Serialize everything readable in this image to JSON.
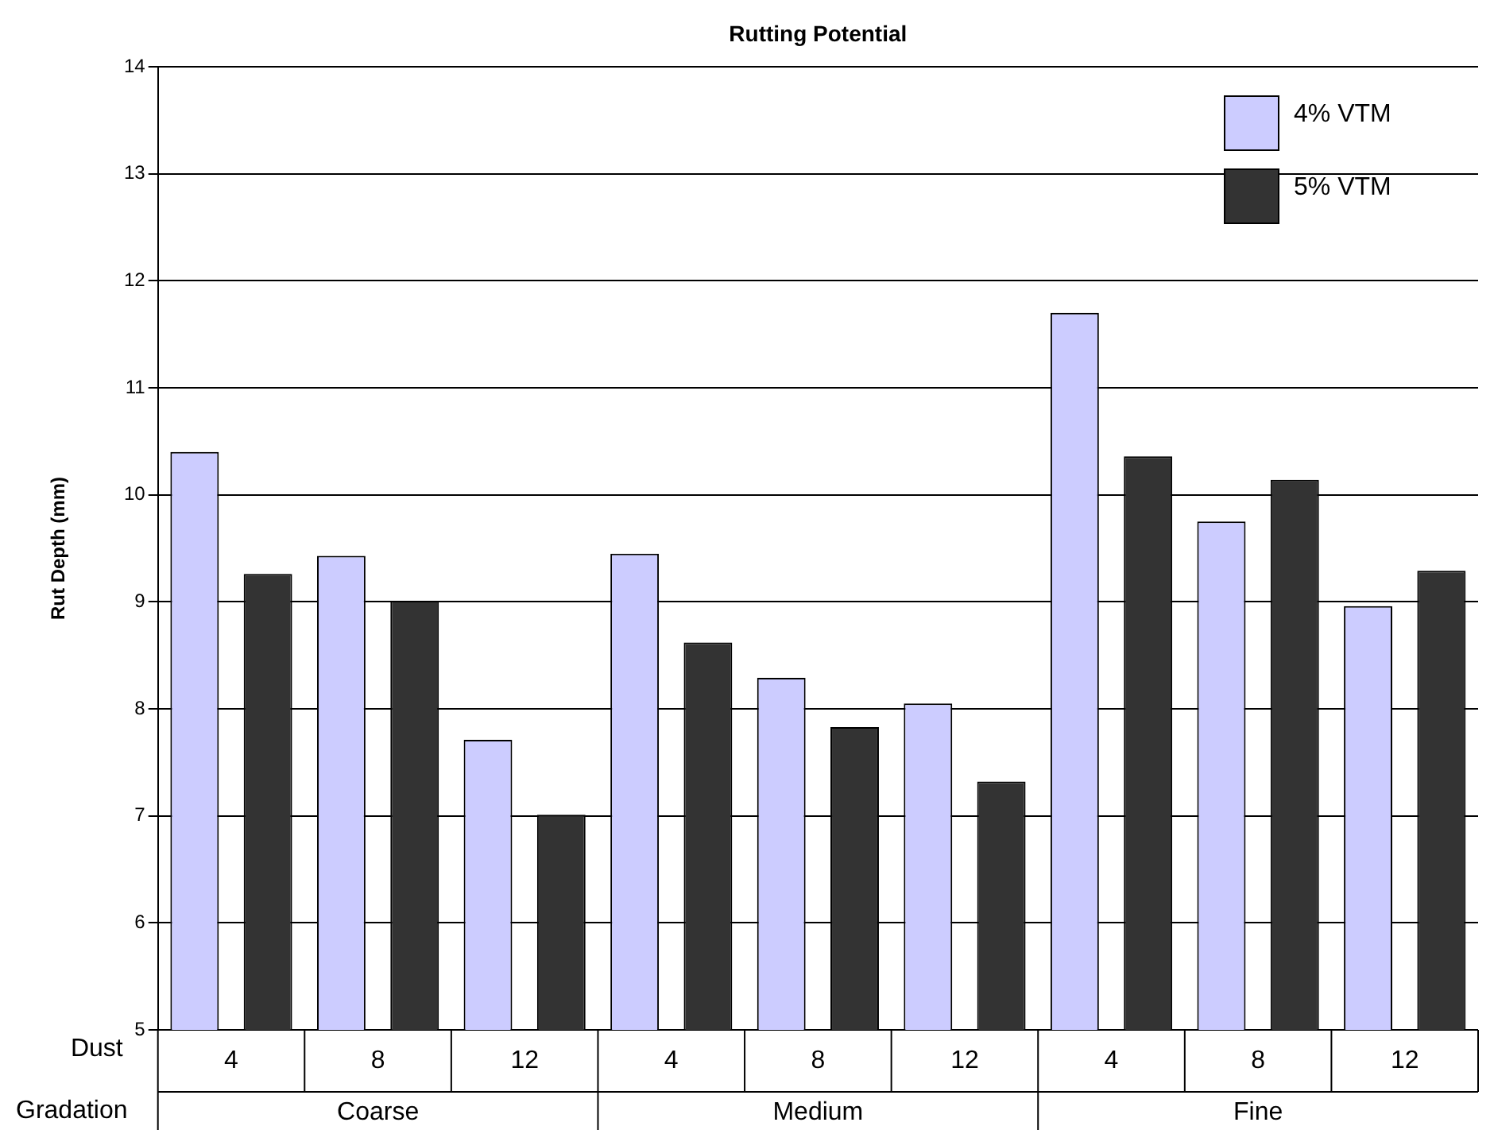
{
  "chart_data": {
    "type": "bar",
    "title": "Rutting Potential",
    "ylabel": "Rut Depth (mm)",
    "categories": [
      "4",
      "8",
      "12",
      "4",
      "8",
      "12",
      "4",
      "8",
      "12"
    ],
    "series": [
      {
        "name": "4% VTM",
        "color": "#ccccff",
        "values": [
          10.4,
          9.43,
          7.71,
          9.45,
          8.29,
          8.05,
          11.7,
          9.75,
          8.96
        ]
      },
      {
        "name": "5% VTM",
        "color": "#333333",
        "values": [
          9.26,
          9.01,
          7.01,
          8.62,
          7.83,
          7.32,
          10.36,
          10.14,
          9.29
        ]
      }
    ],
    "annotations": [
      "Dust",
      "Gradation",
      "Coarse",
      "Medium",
      "Fine"
    ],
    "ylim": [
      5,
      14
    ],
    "yticks": [
      5,
      6,
      7,
      8,
      9,
      10,
      11,
      12,
      13,
      14
    ],
    "grid": "y",
    "legend": "top right"
  }
}
